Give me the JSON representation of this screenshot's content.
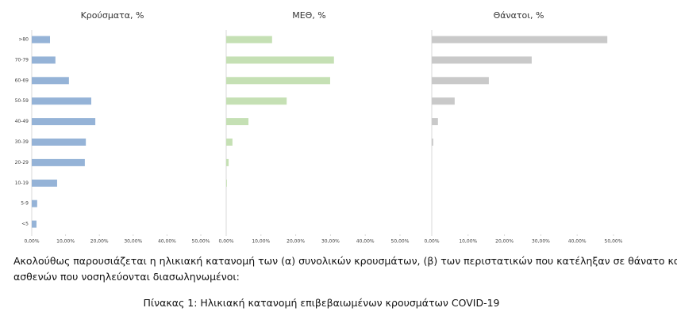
{
  "chart_data": [
    {
      "type": "bar",
      "title": "Κρούσματα, %",
      "orientation": "horizontal",
      "color": "#95b3d7",
      "categories": [
        ">80",
        "70-79",
        "60-69",
        "50-59",
        "40-49",
        "30-39",
        "20-29",
        "10-19",
        "5-9",
        "<5"
      ],
      "values": [
        5.4,
        7.0,
        11.0,
        17.6,
        18.8,
        16.0,
        15.7,
        7.5,
        1.6,
        1.4
      ],
      "xlim": [
        0,
        50
      ],
      "xticks": [
        {
          "value": 0,
          "label": "0,00%"
        },
        {
          "value": 10,
          "label": "10,00%"
        },
        {
          "value": 20,
          "label": "20,00%"
        },
        {
          "value": 30,
          "label": "30,00%"
        },
        {
          "value": 40,
          "label": "40,00%"
        },
        {
          "value": 50,
          "label": "50,00%"
        }
      ]
    },
    {
      "type": "bar",
      "title": "ΜΕΘ, %",
      "orientation": "horizontal",
      "color": "#c5e0b4",
      "values": [
        13.2,
        31.0,
        29.9,
        17.4,
        6.4,
        1.8,
        0.7,
        0.2,
        0,
        0
      ],
      "xlim": [
        0,
        50
      ],
      "xticks": [
        {
          "value": 0,
          "label": "0,00%"
        },
        {
          "value": 10,
          "label": "10,00%"
        },
        {
          "value": 20,
          "label": "20,00%"
        },
        {
          "value": 30,
          "label": "30,00%"
        },
        {
          "value": 40,
          "label": "40,00%"
        },
        {
          "value": 50,
          "label": "50,00%"
        }
      ]
    },
    {
      "type": "bar",
      "title": "Θάνατοι, %",
      "orientation": "horizontal",
      "color": "#c9c9c9",
      "values": [
        48.3,
        27.5,
        15.7,
        6.3,
        1.7,
        0.4,
        0,
        0,
        0,
        0
      ],
      "xlim": [
        0,
        50
      ],
      "xticks": [
        {
          "value": 0,
          "label": "0,00%"
        },
        {
          "value": 10,
          "label": "10,00%"
        },
        {
          "value": 20,
          "label": "20,00%"
        },
        {
          "value": 30,
          "label": "30,00%"
        },
        {
          "value": 40,
          "label": "40,00%"
        },
        {
          "value": 50,
          "label": "50,00%"
        }
      ]
    }
  ],
  "paragraph": [
    "Ακολούθως παρουσιάζεται η ηλικιακή κατανομή των (α) συνολικών κρουσμάτων, (β) των περιστατικών που κατέληξαν σε θάνατο και (γ) των",
    "ασθενών που νοσηλεύονται διασωληνωμένοι:"
  ],
  "caption": "Πίνακας 1: Ηλικιακή κατανομή επιβεβαιωμένων κρουσμάτων COVID-19"
}
